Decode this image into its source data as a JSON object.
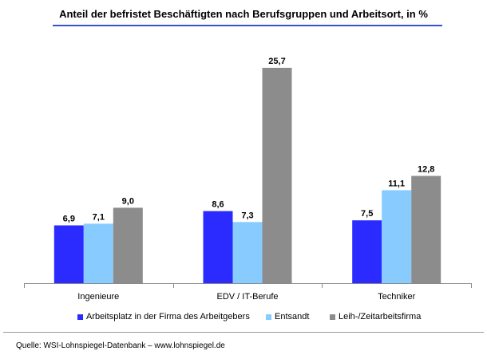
{
  "chart_data": {
    "type": "bar",
    "title": "Anteil der befristet Beschäftigten nach Berufsgruppen und Arbeitsort, in %",
    "categories": [
      "Ingenieure",
      "EDV / IT-Berufe",
      "Techniker"
    ],
    "series": [
      {
        "name": "Arbeitsplatz in der Firma des Arbeitgebers",
        "color": "#2b2bff",
        "values": [
          6.9,
          8.6,
          7.5
        ],
        "labels": [
          "6,9",
          "8,6",
          "7,5"
        ]
      },
      {
        "name": "Entsandt",
        "color": "#88ccff",
        "values": [
          7.1,
          7.3,
          11.1
        ],
        "labels": [
          "7,1",
          "7,3",
          "11,1"
        ]
      },
      {
        "name": "Leih-/Zeitarbeitsfirma",
        "color": "#8c8c8c",
        "values": [
          9.0,
          25.7,
          12.8
        ],
        "labels": [
          "9,0",
          "25,7",
          "12,8"
        ]
      }
    ],
    "ylim": [
      0,
      30
    ],
    "grid": false,
    "legend_position": "bottom"
  },
  "source": "Quelle: WSI-Lohnspiegel-Datenbank  –  www.lohnspiegel.de"
}
